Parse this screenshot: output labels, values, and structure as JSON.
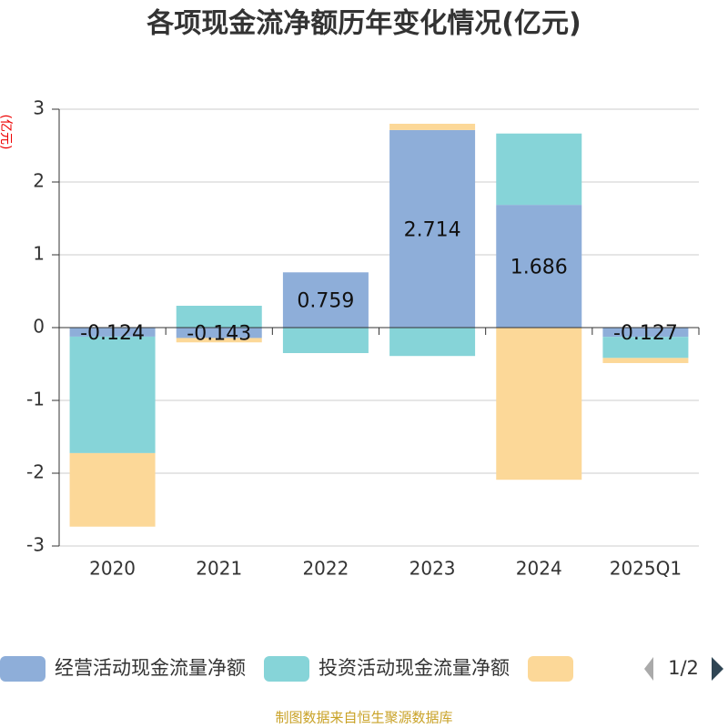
{
  "chart_data": {
    "type": "bar",
    "stacked": true,
    "title": "各项现金流净额历年变化情况(亿元)",
    "y_label": "(亿元)",
    "source": "制图数据来自恒生聚源数据库",
    "legend_page": "1/2",
    "categories": [
      "2020",
      "2021",
      "2022",
      "2023",
      "2024",
      "2025Q1"
    ],
    "series": [
      {
        "name": "经营活动现金流量净额",
        "color": "#8eaed9",
        "values": [
          -0.124,
          -0.143,
          0.759,
          2.714,
          1.686,
          -0.127
        ],
        "data_labels": true
      },
      {
        "name": "投资活动现金流量净额",
        "color": "#86d4d8",
        "values": [
          -1.6,
          0.3,
          -0.35,
          -0.39,
          0.98,
          -0.29
        ]
      },
      {
        "color": "#fcd898",
        "values": [
          -1.01,
          -0.06,
          0,
          0.086,
          -2.09,
          -0.07
        ]
      }
    ],
    "ylim": [
      -3,
      3
    ],
    "yticks": [
      -3,
      -2,
      -1,
      0,
      1,
      2,
      3
    ],
    "grid": true
  }
}
